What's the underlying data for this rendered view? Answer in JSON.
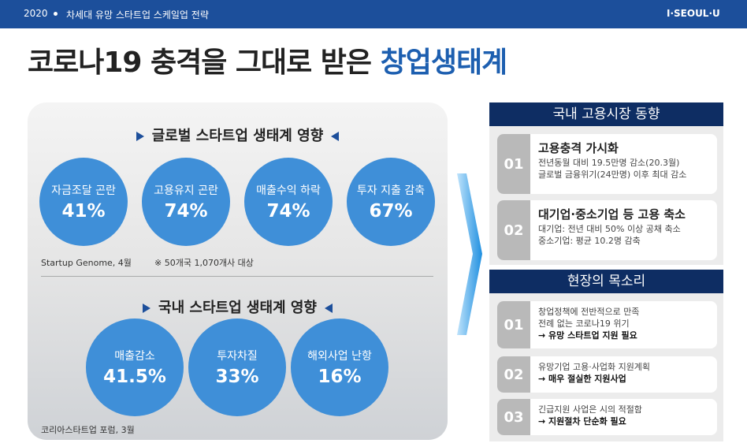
{
  "header": {
    "year": "2020",
    "subtitle": "차세대 유망 스타트업 스케일업 전략",
    "logo": "I·SEOUL·U"
  },
  "title": {
    "main": "코로나19 충격을 그대로 받은",
    "highlight": "창업생태계"
  },
  "global": {
    "heading": "글로벌 스타트업 생태계 영향",
    "items": [
      {
        "label": "자금조달 곤란",
        "value": "41%"
      },
      {
        "label": "고용유지 곤란",
        "value": "74%"
      },
      {
        "label": "매출수익 하락",
        "value": "74%"
      },
      {
        "label": "투자 지출 감축",
        "value": "67%"
      }
    ],
    "source": "Startup Genome, 4월",
    "note": "※ 50개국 1,070개사 대상"
  },
  "domestic": {
    "heading": "국내 스타트업 생태계 영향",
    "items": [
      {
        "label": "매출감소",
        "value": "41.5%"
      },
      {
        "label": "투자차질",
        "value": "33%"
      },
      {
        "label": "해외사업 난항",
        "value": "16%"
      }
    ],
    "source": "코리아스타트업 포럼, 3월"
  },
  "employment": {
    "heading": "국내 고용시장 동향",
    "items": [
      {
        "num": "01",
        "title": "고용충격 가시화",
        "lines": [
          "전년동월 대비 19.5만명 감소(20.3월)",
          "글로벌 금융위기(24만명) 이후 최대 감소"
        ]
      },
      {
        "num": "02",
        "title": "대기업·중소기업 등 고용 축소",
        "lines": [
          "대기업: 전년 대비 50% 이상 공채 축소",
          "중소기업: 평균 10.2명 감축"
        ]
      }
    ]
  },
  "voices": {
    "heading": "현장의 목소리",
    "items": [
      {
        "num": "01",
        "lines": [
          "창업정책에 전반적으로 만족",
          "전례 없는 코로나19 위기"
        ],
        "emphasis": "→ 유망 스타트업 지원 필요"
      },
      {
        "num": "02",
        "lines": [
          "유망기업 고용·사업화 지원계획"
        ],
        "emphasis": "→ 매우 절실한 지원사업"
      },
      {
        "num": "03",
        "lines": [
          "긴급지원 사업은 시의 적절함"
        ],
        "emphasis": "→ 지원절차 단순화 필요"
      }
    ]
  }
}
